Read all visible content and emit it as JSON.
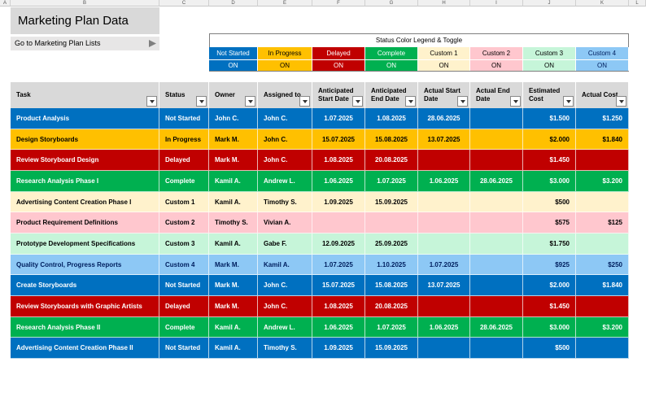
{
  "columns": [
    "A",
    "B",
    "C",
    "D",
    "E",
    "F",
    "G",
    "H",
    "I",
    "J",
    "K",
    "L"
  ],
  "header": {
    "title": "Marketing Plan Data",
    "link": "Go to Marketing Plan Lists"
  },
  "legend": {
    "title": "Status Color Legend & Toggle",
    "items": [
      {
        "name": "Not Started",
        "toggle": "ON",
        "color": "#0070c0",
        "text_color": "#ffffff"
      },
      {
        "name": "In Progress",
        "toggle": "ON",
        "color": "#ffc000",
        "text_color": "#000000"
      },
      {
        "name": "Delayed",
        "toggle": "ON",
        "color": "#c00000",
        "text_color": "#ffffff"
      },
      {
        "name": "Complete",
        "toggle": "ON",
        "color": "#00b050",
        "text_color": "#ffffff"
      },
      {
        "name": "Custom 1",
        "toggle": "ON",
        "color": "#fff2cc",
        "text_color": "#000000"
      },
      {
        "name": "Custom 2",
        "toggle": "ON",
        "color": "#ffc7ce",
        "text_color": "#000000"
      },
      {
        "name": "Custom 3",
        "toggle": "ON",
        "color": "#c6f5d9",
        "text_color": "#000000"
      },
      {
        "name": "Custom 4",
        "toggle": "ON",
        "color": "#8dc8f5",
        "text_color": "#002060"
      }
    ]
  },
  "table": {
    "headers": [
      "Task",
      "Status",
      "Owner",
      "Assigned to",
      "Anticipated Start Date",
      "Anticipated End Date",
      "Actual Start Date",
      "Actual End Date",
      "Estimated Cost",
      "Actual Cost"
    ],
    "rows": [
      [
        "Product Analysis",
        "Not Started",
        "John C.",
        "John C.",
        "1.07.2025",
        "1.08.2025",
        "28.06.2025",
        null,
        "$1.500",
        "$1.250"
      ],
      [
        "Design Storyboards",
        "In Progress",
        "Mark M.",
        "John C.",
        "15.07.2025",
        "15.08.2025",
        "13.07.2025",
        null,
        "$2.000",
        "$1.840"
      ],
      [
        "Review Storyboard Design",
        "Delayed",
        "Mark M.",
        "John C.",
        "1.08.2025",
        "20.08.2025",
        null,
        null,
        "$1.450",
        null
      ],
      [
        "Research Analysis Phase I",
        "Complete",
        "Kamil A.",
        "Andrew L.",
        "1.06.2025",
        "1.07.2025",
        "1.06.2025",
        "28.06.2025",
        "$3.000",
        "$3.200"
      ],
      [
        "Advertising Content Creation Phase I",
        "Custom 1",
        "Kamil A.",
        "Timothy S.",
        "1.09.2025",
        "15.09.2025",
        null,
        null,
        "$500",
        null
      ],
      [
        "Product Requirement Definitions",
        "Custom 2",
        "Timothy S.",
        "Vivian A.",
        null,
        null,
        null,
        null,
        "$575",
        "$125"
      ],
      [
        "Prototype Development Specifications",
        "Custom 3",
        "Kamil A.",
        "Gabe F.",
        "12.09.2025",
        "25.09.2025",
        null,
        null,
        "$1.750",
        null
      ],
      [
        "Quality Control, Progress Reports",
        "Custom 4",
        "Mark M.",
        "Kamil A.",
        "1.07.2025",
        "1.10.2025",
        "1.07.2025",
        null,
        "$925",
        "$250"
      ],
      [
        "Create Storyboards",
        "Not Started",
        "Mark M.",
        "John C.",
        "15.07.2025",
        "15.08.2025",
        "13.07.2025",
        null,
        "$2.000",
        "$1.840"
      ],
      [
        "Review Storyboards with Graphic Artists",
        "Delayed",
        "Mark M.",
        "John C.",
        "1.08.2025",
        "20.08.2025",
        null,
        null,
        "$1.450",
        null
      ],
      [
        "Research Analysis Phase II",
        "Complete",
        "Kamil A.",
        "Andrew L.",
        "1.06.2025",
        "1.07.2025",
        "1.06.2025",
        "28.06.2025",
        "$3.000",
        "$3.200"
      ],
      [
        "Advertising Content Creation Phase II",
        "Not Started",
        "Kamil A.",
        "Timothy S.",
        "1.09.2025",
        "15.09.2025",
        null,
        null,
        "$500",
        null
      ]
    ]
  }
}
